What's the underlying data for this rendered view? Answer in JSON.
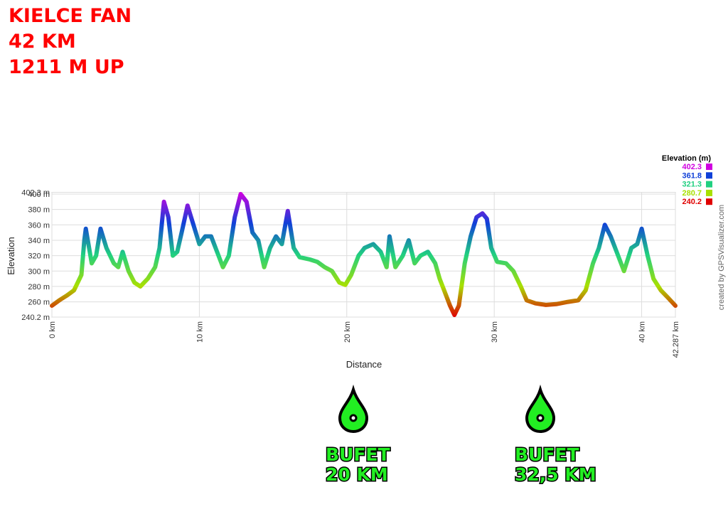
{
  "chart_data": {
    "type": "line",
    "title_lines": [
      "KIELCE FAN",
      "42 KM",
      "1211 M UP"
    ],
    "x_label": "Distance",
    "y_label": "Elevation",
    "credit": "created by GPSVisualizer.com",
    "xlim": [
      0,
      42.287
    ],
    "ylim": [
      240.2,
      402.3
    ],
    "xticks": [
      {
        "value": 0,
        "label": "0 km"
      },
      {
        "value": 10,
        "label": "10 km"
      },
      {
        "value": 20,
        "label": "20 km"
      },
      {
        "value": 30,
        "label": "30 km"
      },
      {
        "value": 40,
        "label": "40 km"
      },
      {
        "value": 42.287,
        "label": "42.287 km"
      }
    ],
    "yticks": [
      {
        "value": 240.2,
        "label": "240.2 m"
      },
      {
        "value": 260,
        "label": "260 m"
      },
      {
        "value": 280,
        "label": "280 m"
      },
      {
        "value": 300,
        "label": "300 m"
      },
      {
        "value": 320,
        "label": "320 m"
      },
      {
        "value": 340,
        "label": "340 m"
      },
      {
        "value": 360,
        "label": "360 m"
      },
      {
        "value": 380,
        "label": "380 m"
      },
      {
        "value": 400,
        "label": "400 m"
      },
      {
        "value": 402.3,
        "label": "402.3 m"
      }
    ],
    "grid": true,
    "legend": {
      "title": "Elevation (m)",
      "items": [
        {
          "value": 402.3,
          "color": "#d000e0"
        },
        {
          "value": 361.8,
          "color": "#1040d8"
        },
        {
          "value": 321.3,
          "color": "#20d080"
        },
        {
          "value": 280.7,
          "color": "#a8e000"
        },
        {
          "value": 240.2,
          "color": "#e00000"
        }
      ]
    },
    "x": [
      0,
      0.5,
      1,
      1.5,
      2,
      2.2,
      2.3,
      2.7,
      3.0,
      3.3,
      3.7,
      4.2,
      4.5,
      4.8,
      5.2,
      5.6,
      6.0,
      6.5,
      7.0,
      7.3,
      7.6,
      7.9,
      8.2,
      8.5,
      8.8,
      9.2,
      9.6,
      10,
      10.4,
      10.8,
      11.2,
      11.6,
      12,
      12.4,
      12.8,
      13.2,
      13.6,
      14,
      14.4,
      14.8,
      15.2,
      15.6,
      16,
      16.4,
      16.8,
      17.5,
      18,
      18.5,
      19,
      19.5,
      19.9,
      20.3,
      20.8,
      21.2,
      21.8,
      22.3,
      22.7,
      22.9,
      23.3,
      23.8,
      24.2,
      24.6,
      25,
      25.5,
      26,
      26.3,
      26.6,
      27,
      27.3,
      27.6,
      28,
      28.4,
      28.8,
      29.2,
      29.5,
      29.8,
      30.2,
      30.8,
      31.3,
      31.8,
      32.2,
      32.8,
      33.5,
      34.2,
      35,
      35.7,
      36.2,
      36.7,
      37.1,
      37.5,
      37.9,
      38.4,
      38.8,
      39.3,
      39.7,
      40,
      40.4,
      40.8,
      41.3,
      41.8,
      42.287
    ],
    "values": [
      255,
      262,
      268,
      275,
      295,
      340,
      355,
      310,
      320,
      355,
      330,
      310,
      305,
      325,
      300,
      285,
      280,
      290,
      305,
      330,
      390,
      370,
      320,
      325,
      350,
      385,
      360,
      335,
      345,
      345,
      325,
      305,
      320,
      370,
      400,
      390,
      350,
      340,
      305,
      330,
      345,
      335,
      378,
      330,
      318,
      315,
      312,
      305,
      300,
      285,
      282,
      295,
      320,
      330,
      335,
      325,
      305,
      345,
      305,
      320,
      340,
      310,
      320,
      325,
      310,
      290,
      275,
      255,
      243,
      255,
      310,
      345,
      370,
      375,
      368,
      330,
      312,
      310,
      300,
      280,
      262,
      258,
      256,
      257,
      260,
      262,
      275,
      310,
      330,
      360,
      345,
      320,
      300,
      330,
      335,
      355,
      320,
      290,
      275,
      265,
      255
    ]
  },
  "annotations": [
    {
      "label": "BUFET",
      "distance": "20 KM"
    },
    {
      "label": "BUFET",
      "distance": "32,5 KM"
    }
  ]
}
